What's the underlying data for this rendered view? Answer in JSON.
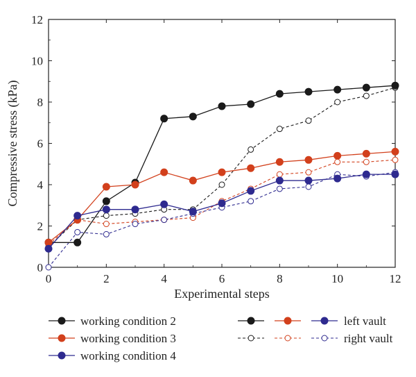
{
  "chart_data": {
    "type": "line",
    "xlabel": "Experimental steps",
    "ylabel": "Compressive stress (kPa)",
    "xlim": [
      0,
      12
    ],
    "ylim": [
      0,
      12
    ],
    "xticks": [
      0,
      2,
      4,
      6,
      8,
      10,
      12
    ],
    "yticks": [
      0,
      2,
      4,
      6,
      8,
      10,
      12
    ],
    "grid": false,
    "x": [
      0,
      1,
      2,
      3,
      4,
      5,
      6,
      7,
      8,
      9,
      10,
      11,
      12
    ],
    "series": [
      {
        "name": "working condition 2",
        "vault": "left vault",
        "color": "#1a1a1a",
        "style": "solid",
        "values": [
          1.2,
          1.2,
          3.2,
          4.1,
          7.2,
          7.3,
          7.8,
          7.9,
          8.4,
          8.5,
          8.6,
          8.7,
          8.8
        ]
      },
      {
        "name": "working condition 3",
        "vault": "left vault",
        "color": "#d2401c",
        "style": "solid",
        "values": [
          1.2,
          2.3,
          3.9,
          4.0,
          4.6,
          4.2,
          4.6,
          4.8,
          5.1,
          5.2,
          5.4,
          5.5,
          5.6
        ]
      },
      {
        "name": "working condition 4",
        "vault": "left vault",
        "color": "#2e2a8f",
        "style": "solid",
        "values": [
          0.9,
          2.5,
          2.8,
          2.8,
          3.05,
          2.7,
          3.1,
          3.7,
          4.2,
          4.2,
          4.3,
          4.5,
          4.5
        ]
      },
      {
        "name": "working condition 2",
        "vault": "right vault",
        "color": "#1a1a1a",
        "style": "dashed",
        "values": [
          1.0,
          2.3,
          2.5,
          2.6,
          2.8,
          2.8,
          4.0,
          5.7,
          6.7,
          7.1,
          8.0,
          8.3,
          8.7
        ]
      },
      {
        "name": "working condition 3",
        "vault": "right vault",
        "color": "#d2401c",
        "style": "dashed",
        "values": [
          1.1,
          2.3,
          2.1,
          2.2,
          2.3,
          2.4,
          3.2,
          3.8,
          4.5,
          4.6,
          5.1,
          5.1,
          5.2
        ]
      },
      {
        "name": "working condition 4",
        "vault": "right vault",
        "color": "#2e2a8f",
        "style": "dashed",
        "values": [
          0.0,
          1.7,
          1.6,
          2.1,
          2.3,
          2.6,
          2.9,
          3.2,
          3.8,
          3.9,
          4.5,
          4.4,
          4.6
        ]
      }
    ],
    "legend": {
      "placement": "bottom",
      "conditions": [
        {
          "label": "working condition 2",
          "color": "#1a1a1a"
        },
        {
          "label": "working condition 3",
          "color": "#d2401c"
        },
        {
          "label": "working condition 4",
          "color": "#2e2a8f"
        }
      ],
      "styles": [
        {
          "label": "left vault",
          "style": "solid"
        },
        {
          "label": "right vault",
          "style": "dashed"
        }
      ]
    }
  }
}
